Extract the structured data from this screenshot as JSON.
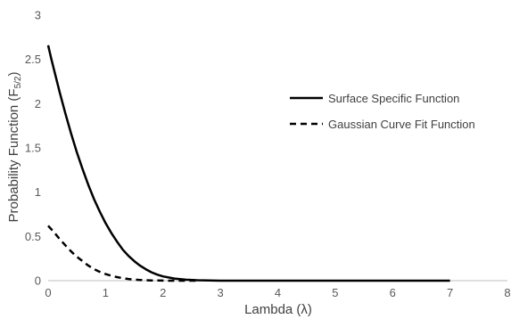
{
  "chart_data": {
    "type": "line",
    "xlabel": "Lambda (λ)",
    "ylabel_main": "Probability Function (F",
    "ylabel_sub": "5/2",
    "ylabel_end": ")",
    "xlim": [
      0,
      8
    ],
    "ylim": [
      0,
      3
    ],
    "xticks": [
      "0",
      "1",
      "2",
      "3",
      "4",
      "5",
      "6",
      "7",
      "8"
    ],
    "yticks": [
      "0",
      "0.5",
      "1",
      "1.5",
      "2",
      "2.5",
      "3"
    ],
    "grid": false,
    "legend_position": "right-center",
    "series": [
      {
        "name": "Surface Specific Function",
        "style": "solid",
        "color": "#000000",
        "x": [
          0,
          0.05,
          0.1,
          0.2,
          0.3,
          0.4,
          0.5,
          0.6,
          0.7,
          0.8,
          0.9,
          1.0,
          1.1,
          1.2,
          1.3,
          1.4,
          1.5,
          1.6,
          1.7,
          1.8,
          1.9,
          2.0,
          2.2,
          2.4,
          2.6,
          2.8,
          3.0,
          4.0,
          5.0,
          6.0,
          7.0
        ],
        "y": [
          2.66,
          2.52,
          2.39,
          2.13,
          1.89,
          1.66,
          1.45,
          1.26,
          1.08,
          0.92,
          0.78,
          0.65,
          0.54,
          0.44,
          0.35,
          0.28,
          0.22,
          0.17,
          0.13,
          0.095,
          0.068,
          0.048,
          0.024,
          0.011,
          0.005,
          0.002,
          0.0,
          0.0,
          0.0,
          0.0,
          0.0
        ]
      },
      {
        "name": "Gaussian Curve Fit Function",
        "style": "dashed",
        "color": "#000000",
        "x": [
          0,
          0.1,
          0.2,
          0.3,
          0.4,
          0.5,
          0.6,
          0.7,
          0.8,
          0.9,
          1.0,
          1.1,
          1.2,
          1.3,
          1.4,
          1.5,
          1.6,
          1.8,
          2.0,
          2.2,
          2.4,
          2.6
        ],
        "y": [
          0.62,
          0.55,
          0.47,
          0.4,
          0.33,
          0.27,
          0.22,
          0.17,
          0.13,
          0.1,
          0.075,
          0.055,
          0.04,
          0.028,
          0.019,
          0.012,
          0.008,
          0.003,
          0.001,
          0.0,
          0.0,
          0.0
        ]
      }
    ]
  }
}
